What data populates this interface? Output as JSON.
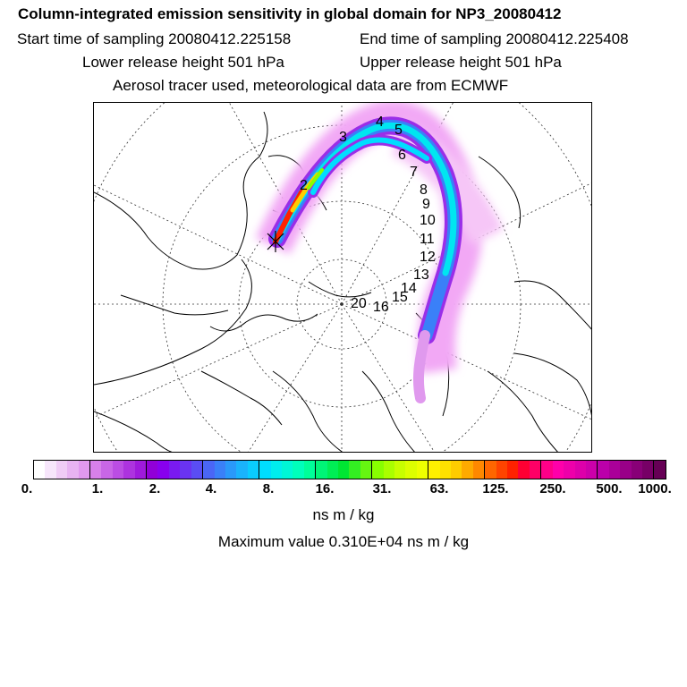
{
  "header": {
    "title": "Column-integrated emission sensitivity in global domain for NP3_20080412",
    "start_label": "Start time of sampling 20080412.225158",
    "end_label": "End time of sampling 20080412.225408",
    "lower_label": "Lower release height  501 hPa",
    "upper_label": "Upper release height  501 hPa",
    "tracer_line": "Aerosol tracer used, meteorological data are from ECMWF"
  },
  "map": {
    "day_labels": [
      "2",
      "3",
      "4",
      "5",
      "6",
      "7",
      "8",
      "9",
      "10",
      "11",
      "12",
      "13",
      "14",
      "15",
      "16",
      "20"
    ],
    "release_marker": "release-point-cross"
  },
  "colorbar": {
    "ticks": [
      "0.",
      "1.",
      "2.",
      "4.",
      "8.",
      "16.",
      "31.",
      "63.",
      "125.",
      "250.",
      "500.",
      "1000."
    ],
    "colors": [
      "#ffffff",
      "#f7e6fb",
      "#f0ccf6",
      "#e8b3f2",
      "#e099ee",
      "#d780ea",
      "#c966e6",
      "#bb4de3",
      "#ad33df",
      "#9f1adc",
      "#9100d8",
      "#8800ee",
      "#7a1af0",
      "#6a33f2",
      "#5a4df4",
      "#4a66f6",
      "#3a80f8",
      "#2a99fa",
      "#1ab3fc",
      "#0accfe",
      "#00ddff",
      "#00eeee",
      "#00f7d6",
      "#00ffbb",
      "#00ff99",
      "#00f577",
      "#00ee55",
      "#00e633",
      "#33ee22",
      "#66f511",
      "#88ff00",
      "#aaff00",
      "#c8ff00",
      "#ddff00",
      "#eeff00",
      "#fff000",
      "#ffe000",
      "#ffcc00",
      "#ffaa00",
      "#ff8800",
      "#ff6600",
      "#ff4400",
      "#ff2200",
      "#ff0033",
      "#ff0066",
      "#ff0088",
      "#ff00aa",
      "#ee00aa",
      "#dd00aa",
      "#cc00aa",
      "#bb00aa",
      "#aa0099",
      "#990088",
      "#880077",
      "#770066",
      "#660055"
    ],
    "units": "ns m / kg",
    "max_value_text": "Maximum value  0.310E+04 ns m / kg"
  }
}
